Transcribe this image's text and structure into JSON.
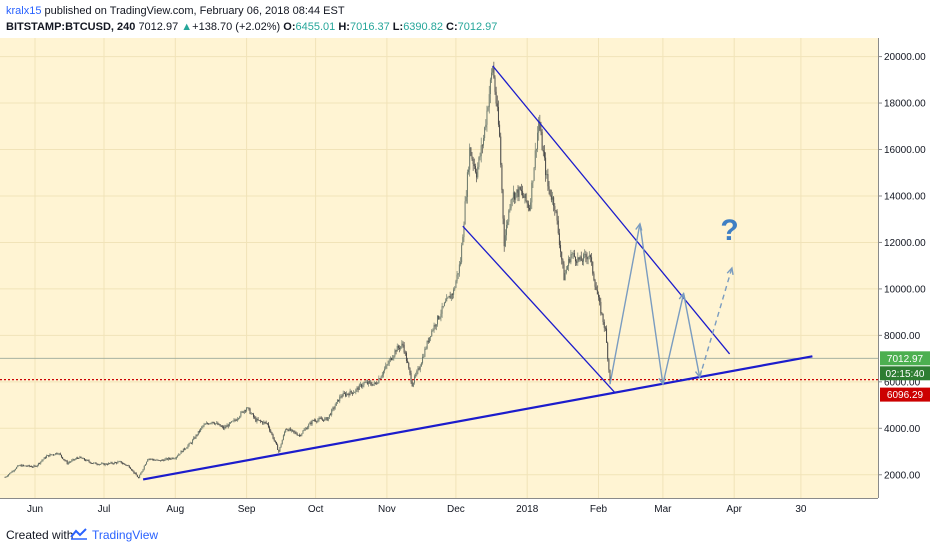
{
  "header": {
    "author": "kralx15",
    "published_text": " published on TradingView.com, February 06, 2018 08:44 EST",
    "symbol": "BITSTAMP:BTCUSD, 240",
    "last": "7012.97",
    "change": "+138.70 (+2.02%)",
    "o_label": "O:",
    "o_value": "6455.01",
    "h_label": "H:",
    "h_value": "7016.37",
    "l_label": "L:",
    "l_value": "6390.82",
    "c_label": "C:",
    "c_value": "7012.97",
    "up_arrow": "▲"
  },
  "footer": {
    "created_text": "Created with",
    "brand": "TradingView",
    "logo_icon": "tradingview-logo-icon"
  },
  "colors": {
    "background": "#fff4d3",
    "grid": "#f1e3b8",
    "candle_up": "#6d7a6e",
    "candle_down": "#4a4a4a",
    "trend_line": "#1c1ccc",
    "projection": "#7a9cc0",
    "support_dotted": "#cc0000",
    "last_price_badge": "#4caf50",
    "countdown_badge": "#2e7d32",
    "level_badge": "#cc0000",
    "question_mark": "#3f7fc4"
  },
  "chart_data": {
    "type": "candlestick",
    "symbol": "BITSTAMP:BTCUSD",
    "interval": "240",
    "ylim": [
      1000,
      20800
    ],
    "y_ticks": [
      2000,
      4000,
      6000,
      8000,
      10000,
      12000,
      14000,
      16000,
      18000,
      20000
    ],
    "y_tick_labels": [
      "2000.00",
      "4000.00",
      "6000.00",
      "8000.00",
      "10000.00",
      "12000.00",
      "14000.00",
      "16000.00",
      "18000.00",
      "20000.00"
    ],
    "x_ticks": [
      {
        "label": "Jun",
        "date": "2017-06-01"
      },
      {
        "label": "Jul",
        "date": "2017-07-01"
      },
      {
        "label": "Aug",
        "date": "2017-08-01"
      },
      {
        "label": "Sep",
        "date": "2017-09-01"
      },
      {
        "label": "Oct",
        "date": "2017-10-01"
      },
      {
        "label": "Nov",
        "date": "2017-11-01"
      },
      {
        "label": "Dec",
        "date": "2017-12-01"
      },
      {
        "label": "2018",
        "date": "2018-01-01"
      },
      {
        "label": "Feb",
        "date": "2018-02-01"
      },
      {
        "label": "Mar",
        "date": "2018-03-01"
      },
      {
        "label": "Apr",
        "date": "2018-04-01"
      },
      {
        "label": "30",
        "date": "2018-04-30"
      }
    ],
    "price_path": [
      [
        "2017-05-19",
        1900
      ],
      [
        "2017-05-25",
        2400
      ],
      [
        "2017-06-01",
        2350
      ],
      [
        "2017-06-06",
        2800
      ],
      [
        "2017-06-11",
        2950
      ],
      [
        "2017-06-15",
        2500
      ],
      [
        "2017-06-20",
        2750
      ],
      [
        "2017-06-26",
        2500
      ],
      [
        "2017-07-01",
        2450
      ],
      [
        "2017-07-08",
        2550
      ],
      [
        "2017-07-12",
        2350
      ],
      [
        "2017-07-16",
        1850
      ],
      [
        "2017-07-20",
        2700
      ],
      [
        "2017-07-25",
        2600
      ],
      [
        "2017-08-01",
        2750
      ],
      [
        "2017-08-08",
        3400
      ],
      [
        "2017-08-13",
        4100
      ],
      [
        "2017-08-17",
        4300
      ],
      [
        "2017-08-22",
        4000
      ],
      [
        "2017-08-27",
        4350
      ],
      [
        "2017-09-01",
        4900
      ],
      [
        "2017-09-05",
        4350
      ],
      [
        "2017-09-10",
        4200
      ],
      [
        "2017-09-15",
        3000
      ],
      [
        "2017-09-18",
        4000
      ],
      [
        "2017-09-24",
        3700
      ],
      [
        "2017-09-30",
        4350
      ],
      [
        "2017-10-06",
        4400
      ],
      [
        "2017-10-12",
        5400
      ],
      [
        "2017-10-18",
        5600
      ],
      [
        "2017-10-22",
        5950
      ],
      [
        "2017-10-27",
        5900
      ],
      [
        "2017-11-01",
        6700
      ],
      [
        "2017-11-05",
        7400
      ],
      [
        "2017-11-08",
        7600
      ],
      [
        "2017-11-12",
        5900
      ],
      [
        "2017-11-15",
        6600
      ],
      [
        "2017-11-20",
        8100
      ],
      [
        "2017-11-26",
        9300
      ],
      [
        "2017-11-30",
        9900
      ],
      [
        "2017-12-03",
        11200
      ],
      [
        "2017-12-07",
        16000
      ],
      [
        "2017-12-10",
        15000
      ],
      [
        "2017-12-13",
        16500
      ],
      [
        "2017-12-17",
        19600
      ],
      [
        "2017-12-20",
        16500
      ],
      [
        "2017-12-22",
        12000
      ],
      [
        "2017-12-25",
        14000
      ],
      [
        "2017-12-29",
        14200
      ],
      [
        "2018-01-02",
        13500
      ],
      [
        "2018-01-06",
        17200
      ],
      [
        "2018-01-10",
        14400
      ],
      [
        "2018-01-13",
        13600
      ],
      [
        "2018-01-17",
        10500
      ],
      [
        "2018-01-20",
        11500
      ],
      [
        "2018-01-24",
        11200
      ],
      [
        "2018-01-28",
        11500
      ],
      [
        "2018-02-01",
        9500
      ],
      [
        "2018-02-04",
        8200
      ],
      [
        "2018-02-06",
        6000
      ]
    ],
    "last_price": 7012.97,
    "countdown": "02:15:40",
    "support_level": 6096.29,
    "annotations": {
      "upper_trend_line": [
        [
          "2017-12-17",
          19600
        ],
        [
          "2018-03-30",
          7200
        ]
      ],
      "lower_channel_line": [
        [
          "2017-12-04",
          12700
        ],
        [
          "2018-02-08",
          5550
        ]
      ],
      "long_support_line": [
        [
          "2017-07-18",
          1800
        ],
        [
          "2018-05-05",
          7100
        ]
      ],
      "projection_path": [
        [
          "2018-02-06",
          5900
        ],
        [
          "2018-02-19",
          12800
        ],
        [
          "2018-03-01",
          5900
        ],
        [
          "2018-03-10",
          9800
        ],
        [
          "2018-03-17",
          6200
        ]
      ],
      "projection_dashed": [
        [
          "2018-03-17",
          6200
        ],
        [
          "2018-03-31",
          10900
        ]
      ],
      "question_mark": {
        "text": "?",
        "date": "2018-03-30",
        "value": 12100
      }
    }
  }
}
